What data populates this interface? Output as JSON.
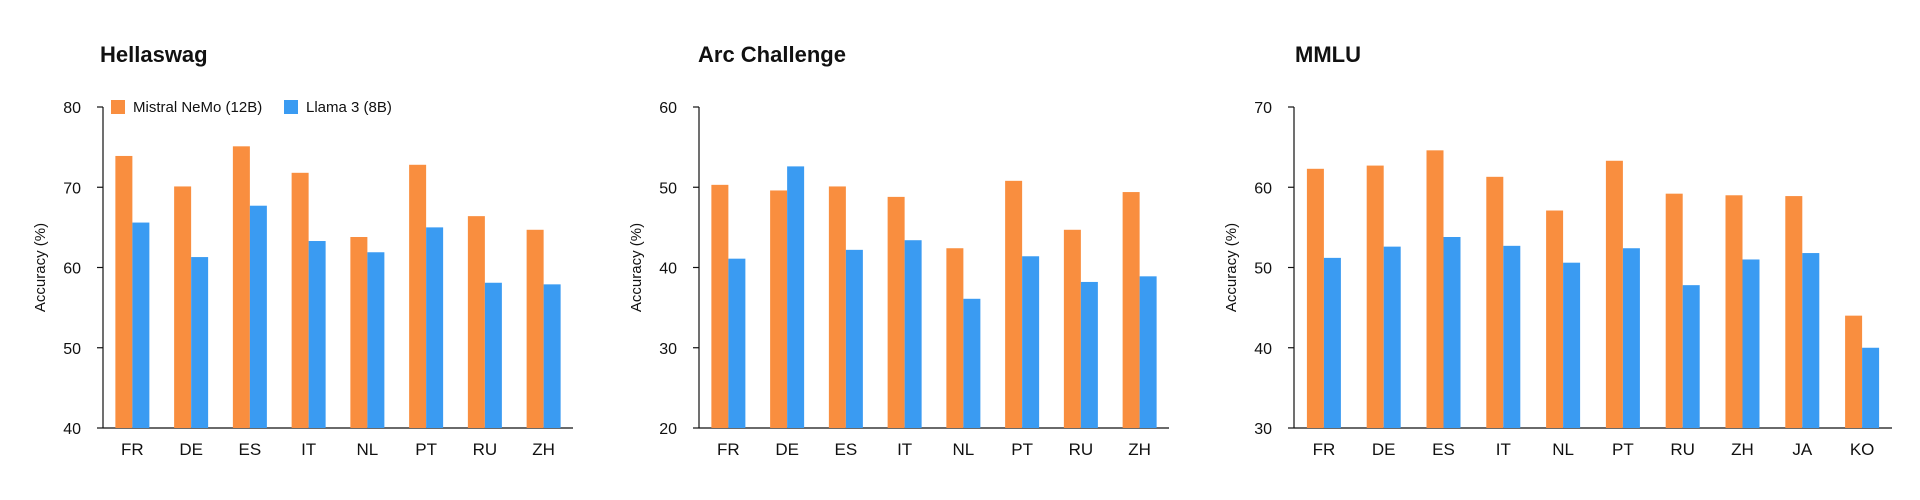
{
  "colors": {
    "mistral": "#F98E3F",
    "llama": "#3A9BF2",
    "axis": "#111111"
  },
  "chart_data": [
    {
      "type": "bar",
      "title": "Hellaswag",
      "ylabel": "Accuracy (%)",
      "xlabel": "",
      "ylim": [
        40,
        80
      ],
      "yticks": [
        40,
        50,
        60,
        70,
        80
      ],
      "legend": "top-left",
      "categories": [
        "FR",
        "DE",
        "ES",
        "IT",
        "NL",
        "PT",
        "RU",
        "ZH"
      ],
      "series": [
        {
          "name": "Mistral NeMo (12B)",
          "values": [
            73.9,
            70.1,
            75.1,
            71.8,
            63.8,
            72.8,
            66.4,
            64.7
          ]
        },
        {
          "name": "Llama 3 (8B)",
          "values": [
            65.6,
            61.3,
            67.7,
            63.3,
            61.9,
            65.0,
            58.1,
            57.9
          ]
        }
      ]
    },
    {
      "type": "bar",
      "title": "Arc Challenge",
      "ylabel": "Accuracy (%)",
      "xlabel": "",
      "ylim": [
        20,
        60
      ],
      "yticks": [
        20,
        30,
        40,
        50,
        60
      ],
      "categories": [
        "FR",
        "DE",
        "ES",
        "IT",
        "NL",
        "PT",
        "RU",
        "ZH"
      ],
      "series": [
        {
          "name": "Mistral NeMo (12B)",
          "values": [
            50.3,
            49.6,
            50.1,
            48.8,
            42.4,
            50.8,
            44.7,
            49.4
          ]
        },
        {
          "name": "Llama 3 (8B)",
          "values": [
            41.1,
            52.6,
            42.2,
            43.4,
            36.1,
            41.4,
            38.2,
            38.9
          ]
        }
      ]
    },
    {
      "type": "bar",
      "title": "MMLU",
      "ylabel": "Accuracy (%)",
      "xlabel": "",
      "ylim": [
        30,
        70
      ],
      "yticks": [
        30,
        40,
        50,
        60,
        70
      ],
      "categories": [
        "FR",
        "DE",
        "ES",
        "IT",
        "NL",
        "PT",
        "RU",
        "ZH",
        "JA",
        "KO"
      ],
      "series": [
        {
          "name": "Mistral NeMo (12B)",
          "values": [
            62.3,
            62.7,
            64.6,
            61.3,
            57.1,
            63.3,
            59.2,
            59.0,
            58.9,
            44.0
          ]
        },
        {
          "name": "Llama 3 (8B)",
          "values": [
            51.2,
            52.6,
            53.8,
            52.7,
            50.6,
            52.4,
            47.8,
            51.0,
            51.8,
            40.0
          ]
        }
      ]
    }
  ]
}
